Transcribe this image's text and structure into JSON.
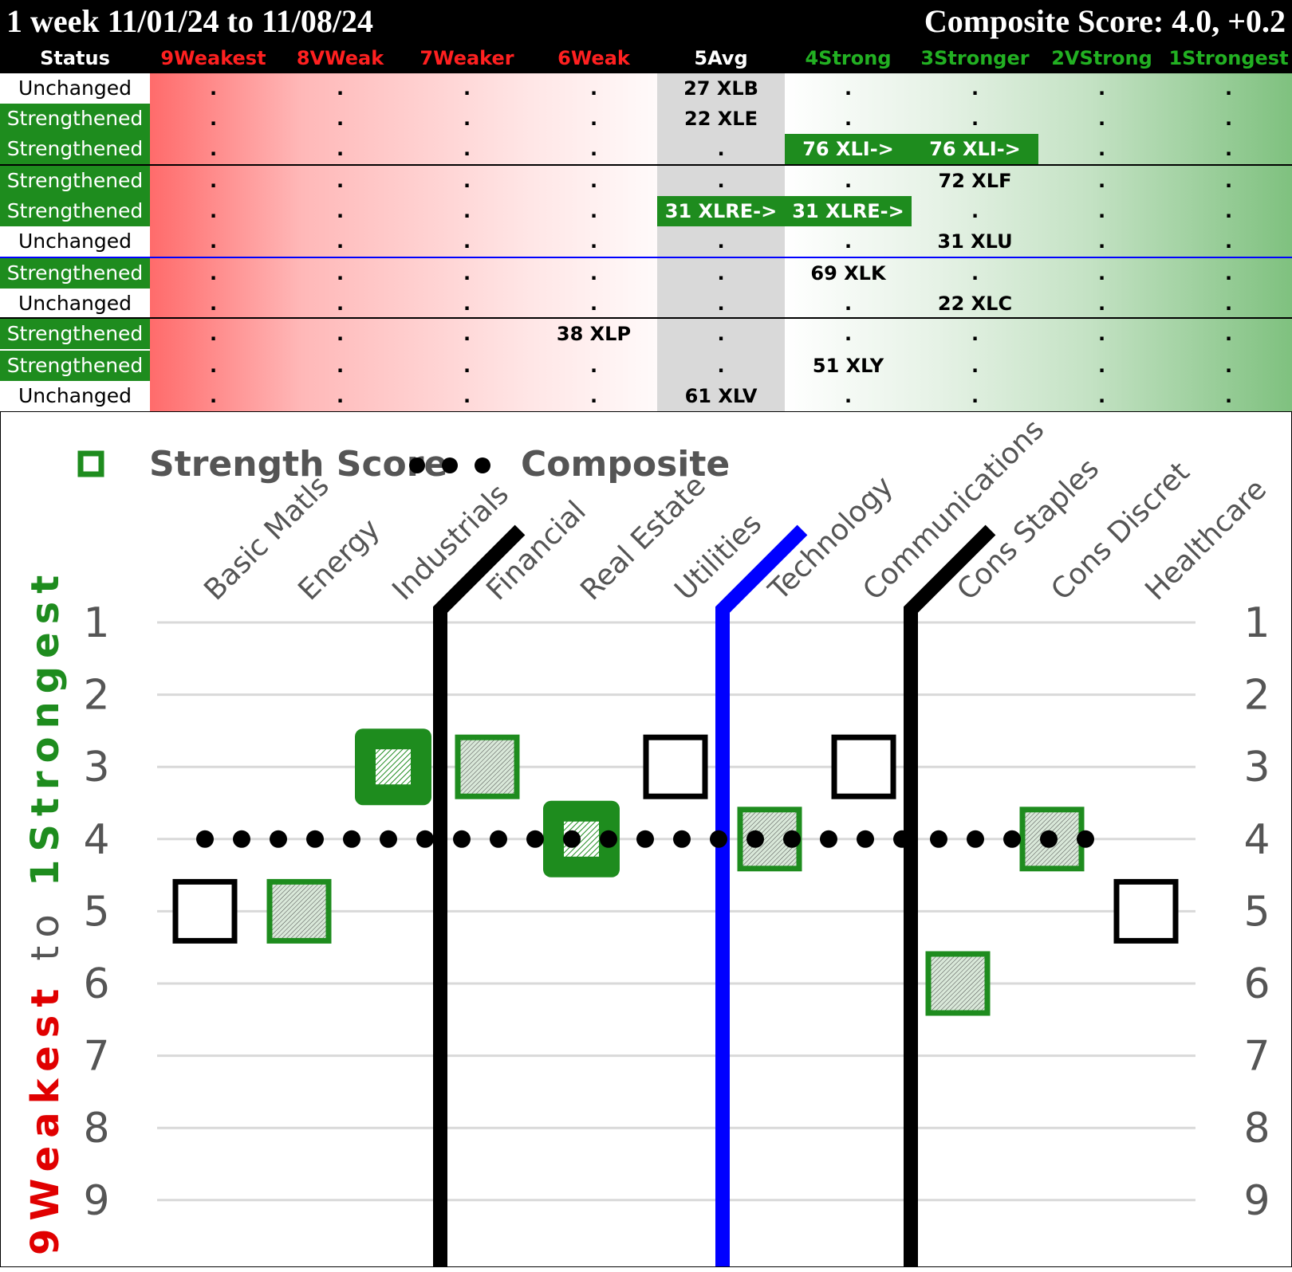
{
  "header": {
    "title_left": "1 week 11/01/24 to 11/08/24",
    "title_right": "Composite Score: 4.0, +0.2"
  },
  "table": {
    "status_header": "Status",
    "columns": [
      {
        "label": "9Weakest",
        "color": "#ff2020"
      },
      {
        "label": "8VWeak",
        "color": "#ff2020"
      },
      {
        "label": "7Weaker",
        "color": "#ff2020"
      },
      {
        "label": "6Weak",
        "color": "#ff2020"
      },
      {
        "label": "5Avg",
        "color": "#ffffff"
      },
      {
        "label": "4Strong",
        "color": "#22b022"
      },
      {
        "label": "3Stronger",
        "color": "#22b022"
      },
      {
        "label": "2VStrong",
        "color": "#22b022"
      },
      {
        "label": "1Strongest",
        "color": "#22b022"
      }
    ],
    "rows": [
      {
        "status": "Unchanged",
        "cells": [
          ".",
          ".",
          ".",
          ".",
          "27 XLB",
          ".",
          ".",
          ".",
          "."
        ],
        "hl": []
      },
      {
        "status": "Strengthened",
        "cells": [
          ".",
          ".",
          ".",
          ".",
          "22 XLE",
          ".",
          ".",
          ".",
          "."
        ],
        "hl": []
      },
      {
        "status": "Strengthened",
        "cells": [
          ".",
          ".",
          ".",
          ".",
          ".",
          "76 XLI->",
          "76 XLI->",
          ".",
          "."
        ],
        "hl": [
          5,
          6
        ]
      },
      {
        "status": "Strengthened",
        "cells": [
          ".",
          ".",
          ".",
          ".",
          ".",
          ".",
          "72 XLF",
          ".",
          "."
        ],
        "hl": []
      },
      {
        "status": "Strengthened",
        "cells": [
          ".",
          ".",
          ".",
          ".",
          "31 XLRE->",
          "31 XLRE->",
          ".",
          ".",
          "."
        ],
        "hl": [
          4,
          5
        ]
      },
      {
        "status": "Unchanged",
        "cells": [
          ".",
          ".",
          ".",
          ".",
          ".",
          ".",
          "31 XLU",
          ".",
          "."
        ],
        "hl": []
      },
      {
        "status": "Strengthened",
        "cells": [
          ".",
          ".",
          ".",
          ".",
          ".",
          "69 XLK",
          ".",
          ".",
          "."
        ],
        "hl": []
      },
      {
        "status": "Unchanged",
        "cells": [
          ".",
          ".",
          ".",
          ".",
          ".",
          ".",
          "22 XLC",
          ".",
          "."
        ],
        "hl": []
      },
      {
        "status": "Strengthened",
        "cells": [
          ".",
          ".",
          ".",
          "38 XLP",
          ".",
          ".",
          ".",
          ".",
          "."
        ],
        "hl": []
      },
      {
        "status": "Strengthened",
        "cells": [
          ".",
          ".",
          ".",
          ".",
          ".",
          "51 XLY",
          ".",
          ".",
          "."
        ],
        "hl": []
      },
      {
        "status": "Unchanged",
        "cells": [
          ".",
          ".",
          ".",
          ".",
          "61 XLV",
          ".",
          ".",
          ".",
          "."
        ],
        "hl": []
      }
    ],
    "status_colors": {
      "Strengthened": "#1e8c1e",
      "Unchanged": "#ffffff"
    }
  },
  "chart_data": {
    "type": "scatter",
    "legend": {
      "series1": "Strength Score",
      "series2": "Composite"
    },
    "categories": [
      "Basic Matls",
      "Energy",
      "Industrials",
      "Financial",
      "Real Estate",
      "Utilities",
      "Technology",
      "Communications",
      "Cons Staples",
      "Cons Discret",
      "Healthcare"
    ],
    "strength_score": [
      5,
      5,
      3,
      3,
      4,
      3,
      4,
      3,
      6,
      4,
      5
    ],
    "marker_style": [
      "unchanged",
      "strengthened",
      "strengthened-big",
      "strengthened",
      "strengthened-big",
      "unchanged",
      "strengthened",
      "unchanged",
      "strengthened",
      "strengthened",
      "unchanged"
    ],
    "composite": 4,
    "ylim": [
      1,
      9
    ],
    "y_inverted": true,
    "yticks": [
      "1",
      "2",
      "3",
      "4",
      "5",
      "6",
      "7",
      "8",
      "9"
    ],
    "ylabel_parts": {
      "weak": "9Weakest",
      "to": "to",
      "strong": "1Strongest"
    },
    "dividers_after": [
      {
        "index": 2,
        "color": "#000000"
      },
      {
        "index": 5,
        "color": "#0000ff"
      },
      {
        "index": 7,
        "color": "#000000"
      }
    ],
    "colors": {
      "green": "#1e8c1e",
      "black": "#000000",
      "blue": "#0000ff",
      "weak_red": "#e00000",
      "strong_green": "#1e8c1e"
    }
  }
}
